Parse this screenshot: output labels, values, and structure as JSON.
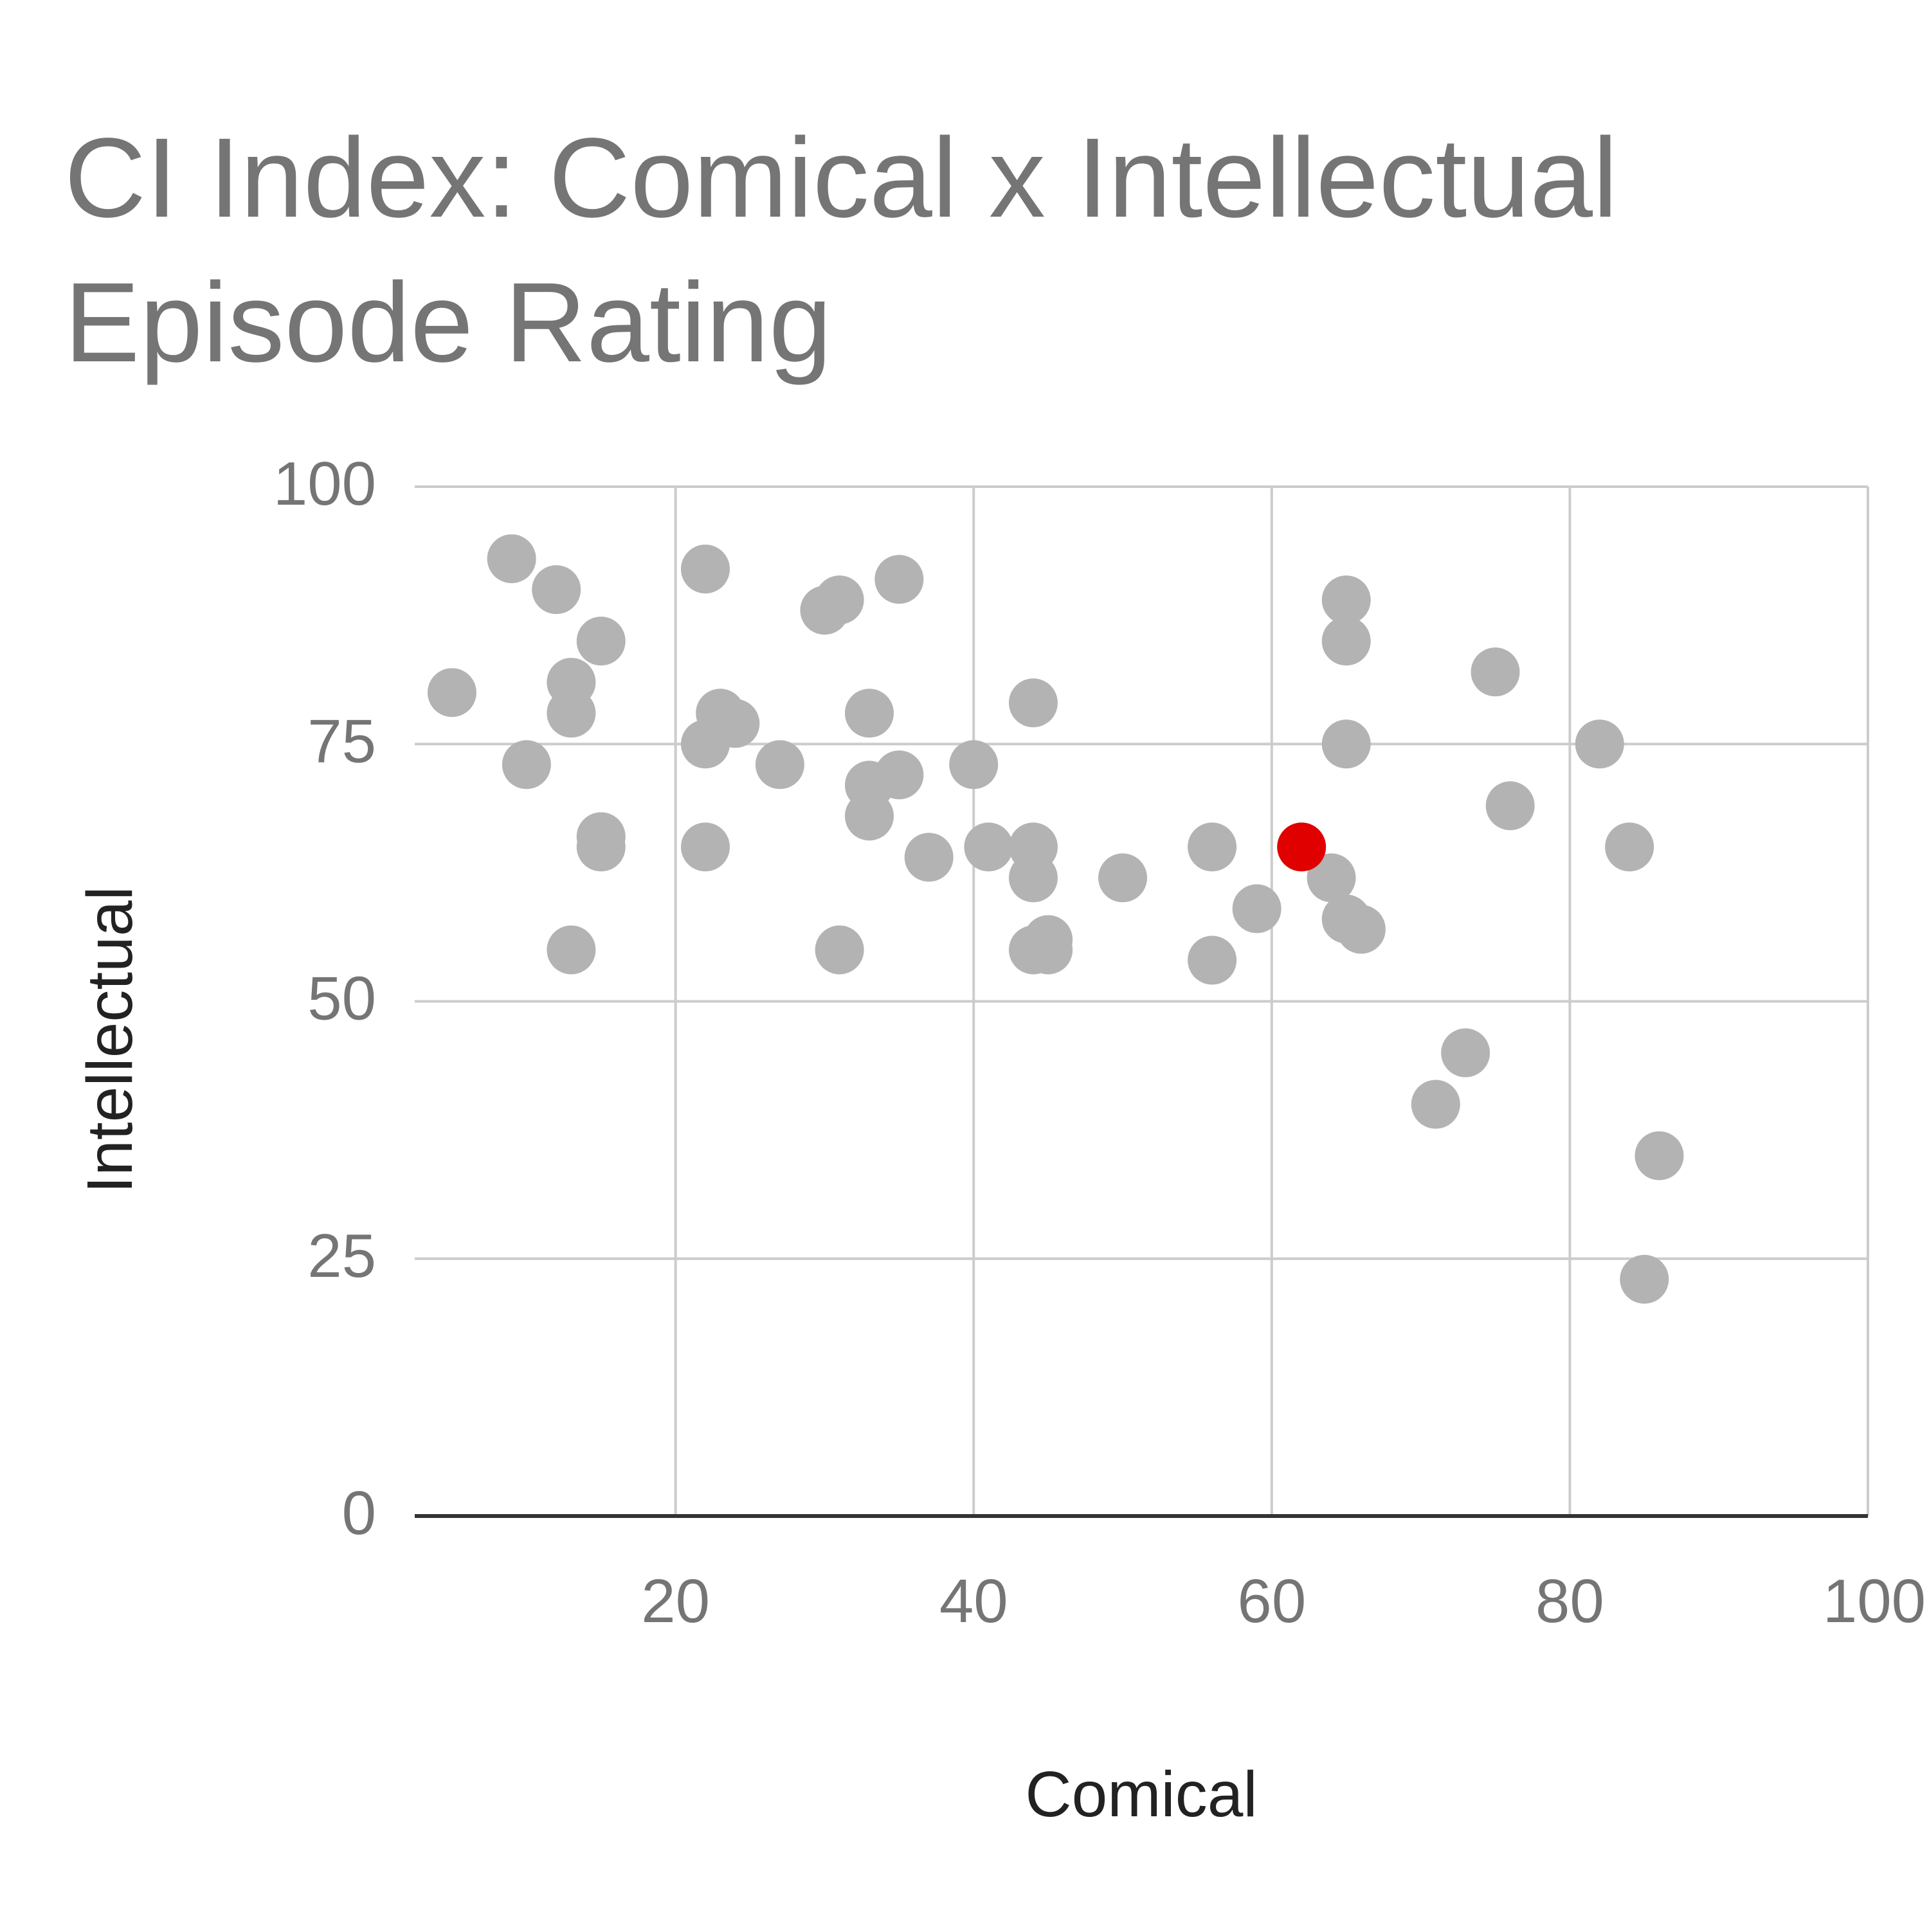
{
  "chart_data": {
    "type": "scatter",
    "title": "CI Index: Comical x Intellectual Episode Rating",
    "xlabel": "Comical",
    "ylabel": "Intellectual",
    "xlim": [
      2.5,
      100
    ],
    "ylim": [
      0,
      100
    ],
    "xticks": [
      20,
      40,
      60,
      80,
      100
    ],
    "yticks": [
      0,
      25,
      50,
      75,
      100
    ],
    "grid": true,
    "legend": "none",
    "colors": {
      "point": "#b3b3b3",
      "highlight": "#e00000",
      "grid": "#cccccc",
      "baseline": "#333333",
      "tick_text": "#757575",
      "axis_title": "#222222",
      "title": "#757575"
    },
    "series": [
      {
        "values": [
          {
            "x": 9,
            "y": 93
          },
          {
            "x": 12,
            "y": 90
          },
          {
            "x": 15,
            "y": 85
          },
          {
            "x": 5,
            "y": 80
          },
          {
            "x": 13,
            "y": 81
          },
          {
            "x": 13,
            "y": 78
          },
          {
            "x": 10,
            "y": 73
          },
          {
            "x": 15,
            "y": 66
          },
          {
            "x": 15,
            "y": 65
          },
          {
            "x": 13,
            "y": 55
          },
          {
            "x": 22,
            "y": 92
          },
          {
            "x": 23,
            "y": 78
          },
          {
            "x": 24,
            "y": 77
          },
          {
            "x": 22,
            "y": 75
          },
          {
            "x": 27,
            "y": 73
          },
          {
            "x": 22,
            "y": 65
          },
          {
            "x": 30,
            "y": 88
          },
          {
            "x": 31,
            "y": 89
          },
          {
            "x": 35,
            "y": 91
          },
          {
            "x": 33,
            "y": 78
          },
          {
            "x": 33,
            "y": 71
          },
          {
            "x": 35,
            "y": 72
          },
          {
            "x": 33,
            "y": 68
          },
          {
            "x": 31,
            "y": 55
          },
          {
            "x": 37,
            "y": 64
          },
          {
            "x": 40,
            "y": 73
          },
          {
            "x": 41,
            "y": 65
          },
          {
            "x": 44,
            "y": 79
          },
          {
            "x": 44,
            "y": 65
          },
          {
            "x": 44,
            "y": 62
          },
          {
            "x": 44,
            "y": 55
          },
          {
            "x": 45,
            "y": 56
          },
          {
            "x": 45,
            "y": 55
          },
          {
            "x": 50,
            "y": 62
          },
          {
            "x": 56,
            "y": 65
          },
          {
            "x": 56,
            "y": 54
          },
          {
            "x": 59,
            "y": 59
          },
          {
            "x": 64,
            "y": 62
          },
          {
            "x": 65,
            "y": 58
          },
          {
            "x": 66,
            "y": 57
          },
          {
            "x": 65,
            "y": 89
          },
          {
            "x": 65,
            "y": 85
          },
          {
            "x": 65,
            "y": 75
          },
          {
            "x": 75,
            "y": 82
          },
          {
            "x": 82,
            "y": 75
          },
          {
            "x": 76,
            "y": 69
          },
          {
            "x": 84,
            "y": 65
          },
          {
            "x": 73,
            "y": 45
          },
          {
            "x": 71,
            "y": 40
          },
          {
            "x": 86,
            "y": 35
          },
          {
            "x": 85,
            "y": 23
          }
        ]
      },
      {
        "values": [
          {
            "x": 62,
            "y": 65
          }
        ]
      }
    ]
  }
}
